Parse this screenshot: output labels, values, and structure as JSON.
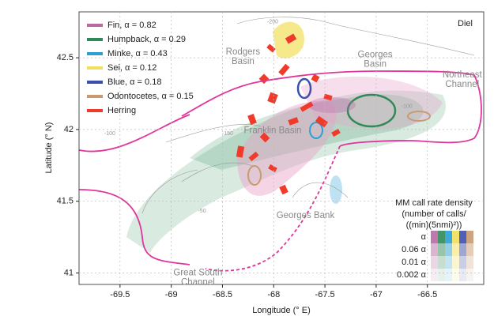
{
  "chart_data": {
    "type": "map",
    "xlabel": "Longitude (° E)",
    "ylabel": "Latitude (° N)",
    "xlim": [
      -69.9,
      -65.95
    ],
    "ylim": [
      40.92,
      42.82
    ],
    "xticks": [
      -69.5,
      -69,
      -68.5,
      -68,
      -67.5,
      -67,
      -66.5
    ],
    "yticks": [
      41,
      41.5,
      42,
      42.5
    ],
    "grid": true,
    "corner_label": "Diel",
    "legend": "upper left",
    "series": [
      {
        "name": "Fin, α = 0.82",
        "color": "#b86aa6"
      },
      {
        "name": "Humpback, α = 0.29",
        "color": "#2f8a57"
      },
      {
        "name": "Minke, α = 0.43",
        "color": "#2a9fd6"
      },
      {
        "name": "Sei, α = 0.12",
        "color": "#f2df5a"
      },
      {
        "name": "Blue, α = 0.18",
        "color": "#3c4fae"
      },
      {
        "name": "Odontocetes, α = 0.15",
        "color": "#c99a72"
      },
      {
        "name": "Herring",
        "color": "#f03a2a"
      }
    ],
    "annotations": [
      {
        "lines": [
          "Rodgers",
          "Basin"
        ],
        "lon": -68.3,
        "lat": 42.54
      },
      {
        "lines": [
          "Georges",
          "Basin"
        ],
        "lon": -67.01,
        "lat": 42.52
      },
      {
        "lines": [
          "Northeast",
          "Channel"
        ],
        "lon": -66.16,
        "lat": 42.38
      },
      {
        "lines": [
          "Franklin Basin"
        ],
        "lon": -68.01,
        "lat": 41.99
      },
      {
        "lines": [
          "Georges Bank"
        ],
        "lon": -67.69,
        "lat": 41.4
      },
      {
        "lines": [
          "Great South",
          "Channel"
        ],
        "lon": -68.74,
        "lat": 41.0
      }
    ],
    "depth_labels": [
      {
        "text": "-200",
        "lon": -68.01,
        "lat": 42.75
      },
      {
        "text": "-100",
        "lon": -66.7,
        "lat": 42.16
      },
      {
        "text": "-150",
        "lon": -68.45,
        "lat": 41.97
      },
      {
        "text": "-50",
        "lon": -68.7,
        "lat": 41.43
      },
      {
        "text": "-100",
        "lon": -69.6,
        "lat": 41.97
      }
    ],
    "density_legend": {
      "title": [
        "MM call rate density",
        "(number of calls/",
        "((min)(5nmi)²))"
      ],
      "rows": [
        "α",
        "0.06 α",
        "0.01 α",
        "0.002 α"
      ]
    }
  }
}
